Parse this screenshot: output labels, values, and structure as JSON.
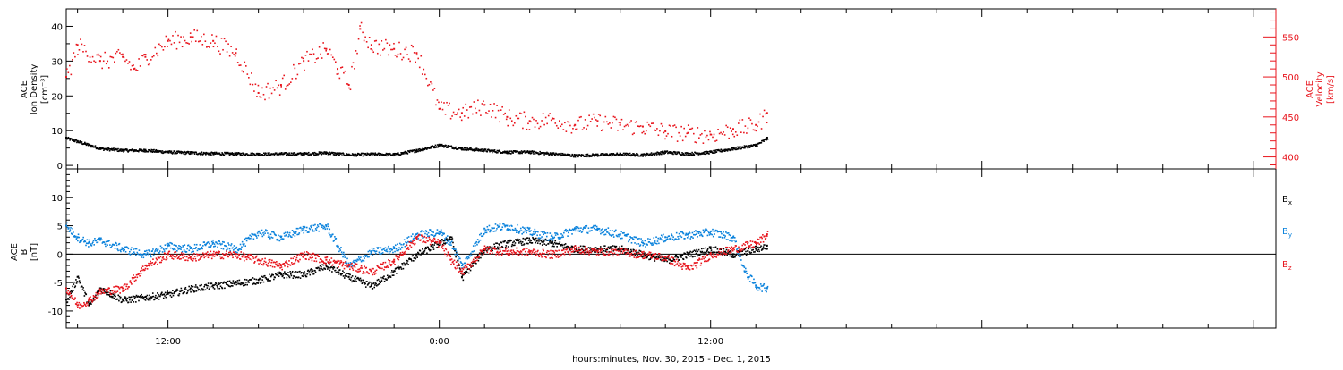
{
  "colors": {
    "black": "#000000",
    "red": "#e8141c",
    "blue": "#0a82dc",
    "background": "#ffffff"
  },
  "chart_data": [
    {
      "type": "scatter",
      "panel": "top",
      "ylabel_left": [
        "ACE",
        "Ion Density",
        "[cm⁻³]"
      ],
      "ylabel_right": [
        "ACE",
        "Velocity",
        "[km/s]"
      ],
      "xlim_hours": [
        -16.5,
        37
      ],
      "ylim_left": [
        -1,
        45
      ],
      "ylim_right": [
        385,
        585
      ],
      "left_ticks": [
        "0",
        "10",
        "20",
        "30",
        "40"
      ],
      "right_ticks": [
        "400",
        "450",
        "500",
        "550"
      ],
      "series": [
        {
          "color": "black",
          "axis": "left",
          "x": [
            -16.5,
            -16,
            -15,
            -14,
            -13,
            -12,
            -11,
            -10,
            -9,
            -8,
            -7,
            -6,
            -5,
            -4,
            -3,
            -2,
            -1,
            0,
            1,
            2,
            3,
            4,
            5,
            6,
            7,
            8,
            9,
            10,
            11,
            12,
            13,
            14,
            14.5
          ],
          "y": [
            8,
            7,
            5,
            4.5,
            4.5,
            4,
            3.8,
            3.6,
            3.5,
            3.4,
            3.5,
            3.5,
            3.8,
            3.2,
            3.4,
            3.3,
            4.5,
            6,
            5,
            4.5,
            4,
            4,
            3.5,
            3,
            3.2,
            3.4,
            3.2,
            4,
            3.5,
            4,
            5,
            6,
            8
          ]
        },
        {
          "color": "red",
          "axis": "right",
          "x": [
            -16.5,
            -16,
            -15,
            -14,
            -13.5,
            -13,
            -12,
            -11,
            -10,
            -9,
            -8,
            -7,
            -6,
            -5,
            -4.5,
            -4,
            -3.5,
            -3,
            -2,
            -1,
            0,
            1,
            2,
            3,
            4,
            5,
            6,
            7,
            8,
            9,
            10,
            11,
            12,
            13,
            14,
            14.5
          ],
          "y": [
            500,
            540,
            520,
            525,
            510,
            525,
            545,
            550,
            545,
            530,
            480,
            490,
            520,
            535,
            510,
            490,
            560,
            540,
            535,
            530,
            460,
            455,
            465,
            450,
            445,
            448,
            440,
            445,
            440,
            438,
            432,
            430,
            428,
            435,
            440,
            455
          ]
        }
      ]
    },
    {
      "type": "scatter",
      "panel": "bottom",
      "ylabel_left": [
        "ACE",
        "B",
        "[nT]"
      ],
      "xlim_hours": [
        -16.5,
        37
      ],
      "ylim": [
        -13,
        15
      ],
      "left_ticks": [
        "-10",
        "-5",
        "0",
        "5",
        "10"
      ],
      "zero_line": true,
      "x_tick_labels": [
        "12:00",
        "0:00",
        "12:00"
      ],
      "x_tick_hours": [
        -12,
        0,
        12
      ],
      "xlabel": "hours:minutes, Nov. 30, 2015 - Dec.  1, 2015",
      "legend": [
        {
          "label": "B",
          "sub": "x",
          "color": "black"
        },
        {
          "label": "B",
          "sub": "y",
          "color": "blue"
        },
        {
          "label": "B",
          "sub": "z",
          "color": "red"
        }
      ],
      "series": [
        {
          "name": "Bx",
          "color": "black",
          "x": [
            -16.5,
            -16,
            -15.5,
            -15,
            -14.5,
            -14,
            -13,
            -12,
            -11,
            -10,
            -9,
            -8,
            -7,
            -6,
            -5,
            -4,
            -3,
            -2,
            -1,
            0,
            0.5,
            1,
            2,
            3,
            4,
            5,
            6,
            7,
            8,
            9,
            10,
            11,
            12,
            13,
            14,
            14.5
          ],
          "y": [
            -8,
            -4,
            -9,
            -6,
            -7,
            -8,
            -7.5,
            -7,
            -6,
            -5.5,
            -5,
            -4.5,
            -3.5,
            -3.5,
            -2,
            -4,
            -5.5,
            -3,
            0,
            2,
            3,
            -4,
            1,
            2,
            2.5,
            2,
            1,
            1,
            1,
            0,
            -1,
            0,
            1,
            0,
            1,
            1.5
          ]
        },
        {
          "name": "By",
          "color": "blue",
          "x": [
            -16.5,
            -16,
            -15.5,
            -15,
            -14,
            -13,
            -12,
            -11,
            -10,
            -9,
            -8,
            -7,
            -6,
            -5,
            -4,
            -3,
            -2,
            -1,
            0,
            0.5,
            1,
            2,
            3,
            4,
            5,
            6,
            7,
            8,
            9,
            10,
            11,
            12,
            13,
            13.5,
            14,
            14.5
          ],
          "y": [
            5,
            3,
            2,
            2.5,
            1,
            0,
            1.5,
            1,
            2,
            1,
            4,
            3,
            4.5,
            5,
            -2,
            0.5,
            1,
            3.5,
            4,
            2,
            -2,
            4.5,
            5,
            4,
            3,
            4.5,
            4.5,
            3.5,
            2,
            3,
            3.5,
            4,
            3,
            -3,
            -5.5,
            -6
          ]
        },
        {
          "name": "Bz",
          "color": "red",
          "x": [
            -16.5,
            -16,
            -15.5,
            -15,
            -14,
            -13,
            -12,
            -11,
            -10,
            -9,
            -8,
            -7,
            -6,
            -5,
            -4,
            -3,
            -2,
            -1,
            0,
            0.5,
            1,
            2,
            3,
            4,
            5,
            6,
            7,
            8,
            9,
            10,
            11,
            12,
            13,
            14,
            14.5
          ],
          "y": [
            -6,
            -9,
            -8,
            -6.5,
            -6,
            -2,
            0,
            -0.5,
            0,
            0,
            -1,
            -2,
            0,
            -1,
            -2,
            -3,
            -1,
            3,
            2,
            -1,
            -3,
            1,
            0.5,
            0.5,
            0,
            1,
            0.5,
            0.5,
            0,
            -0.5,
            -2.5,
            0,
            1,
            2,
            3.5
          ]
        }
      ]
    }
  ]
}
